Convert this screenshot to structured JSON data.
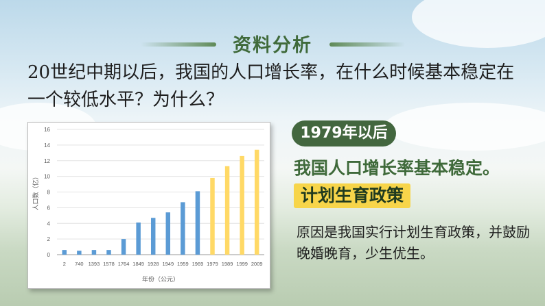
{
  "slide": {
    "title": "资料分析",
    "question": "20世纪中期以后，我国的人口增长率，在什么时候基本稳定在一个较低水平？为什么？",
    "badge": "1979年以后",
    "stable_text": "我国人口增长率基本稳定。",
    "policy_text": "计划生育政策",
    "reason_text": "原因是我国实行计划生育政策，并鼓励晚婚晚育，少生优生。"
  },
  "colors": {
    "accent": "#43673f",
    "title": "#3f6a3a",
    "highlight": "#f7d54a",
    "bar_blue": "#5b9bd5",
    "bar_yellow": "#ffd966"
  },
  "chart_data": {
    "type": "bar",
    "xlabel": "年份（公元）",
    "ylabel": "人口数（亿）",
    "ylim": [
      0,
      16
    ],
    "yticks": [
      0,
      2,
      4,
      6,
      8,
      10,
      12,
      14,
      16
    ],
    "categories": [
      "2",
      "740",
      "1393",
      "1578",
      "1764",
      "1849",
      "1928",
      "1949",
      "1959",
      "1969",
      "1979",
      "1989",
      "1999",
      "2009"
    ],
    "values": [
      0.6,
      0.5,
      0.6,
      0.6,
      2.0,
      4.1,
      4.7,
      5.4,
      6.7,
      8.1,
      9.8,
      11.3,
      12.6,
      13.4
    ],
    "bar_colors": [
      "blue",
      "blue",
      "blue",
      "blue",
      "blue",
      "blue",
      "blue",
      "blue",
      "blue",
      "blue",
      "yellow",
      "yellow",
      "yellow",
      "yellow"
    ],
    "grid": true
  }
}
